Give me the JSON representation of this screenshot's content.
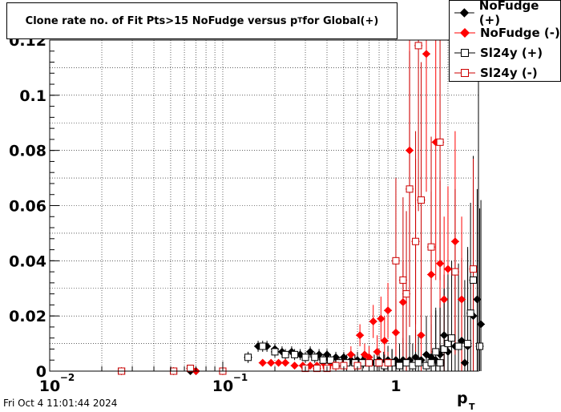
{
  "title": {
    "text": "Clone rate no. of Fit Pts>15 NoFudge versus p",
    "sub": "T",
    "suffix": " for Global(+)"
  },
  "timestamp": "Fri Oct  4 11:01:44 2024",
  "legend": [
    {
      "label": "NoFudge (+)",
      "color": "#000000",
      "marker": "filled-diamond"
    },
    {
      "label": "NoFudge (-)",
      "color": "#ff0000",
      "marker": "filled-diamond"
    },
    {
      "label": "Sl24y (+)",
      "color": "#000000",
      "marker": "open-square"
    },
    {
      "label": "Sl24y (-)",
      "color": "#cc0000",
      "marker": "open-square"
    }
  ],
  "chart_data": {
    "type": "scatter",
    "title": "Clone rate no. of Fit Pts>15 NoFudge versus pT for Global(+)",
    "xlabel": "p",
    "xlabel_sub": "T",
    "ylabel": "",
    "xscale": "log",
    "xlim": [
      0.01,
      3
    ],
    "ylim": [
      0,
      0.12
    ],
    "x_ticks": [
      {
        "value": 0.01,
        "base": "10",
        "exp": "−2"
      },
      {
        "value": 0.1,
        "base": "10",
        "exp": "−1"
      },
      {
        "value": 1,
        "base": "1",
        "exp": ""
      }
    ],
    "y_ticks": [
      0,
      0.02,
      0.04,
      0.06,
      0.08,
      0.1,
      0.12
    ],
    "y_tick_labels": [
      "0",
      "0.02",
      "0.04",
      "0.06",
      "0.08",
      "0.1",
      "0.12"
    ],
    "grid": true,
    "series": [
      {
        "name": "NoFudge (+)",
        "color": "#000000",
        "marker": "filled-diamond",
        "points": [
          [
            0.026,
            0,
            0.001
          ],
          [
            0.052,
            0,
            0.001
          ],
          [
            0.065,
            0,
            0.001
          ],
          [
            0.07,
            0,
            0.001
          ],
          [
            0.1,
            0,
            0.001
          ],
          [
            0.14,
            0.005,
            0.002
          ],
          [
            0.16,
            0.009,
            0.002
          ],
          [
            0.18,
            0.009,
            0.002
          ],
          [
            0.2,
            0.008,
            0.002
          ],
          [
            0.22,
            0.007,
            0.002
          ],
          [
            0.25,
            0.007,
            0.002
          ],
          [
            0.28,
            0.006,
            0.002
          ],
          [
            0.32,
            0.007,
            0.002
          ],
          [
            0.36,
            0.006,
            0.002
          ],
          [
            0.4,
            0.006,
            0.002
          ],
          [
            0.45,
            0.005,
            0.002
          ],
          [
            0.5,
            0.005,
            0.002
          ],
          [
            0.55,
            0.004,
            0.002
          ],
          [
            0.6,
            0.004,
            0.003
          ],
          [
            0.65,
            0.004,
            0.003
          ],
          [
            0.7,
            0.003,
            0.003
          ],
          [
            0.75,
            0.003,
            0.003
          ],
          [
            0.8,
            0.004,
            0.004
          ],
          [
            0.85,
            0.003,
            0.004
          ],
          [
            0.9,
            0.004,
            0.005
          ],
          [
            0.95,
            0.003,
            0.005
          ],
          [
            1.0,
            0.004,
            0.006
          ],
          [
            1.05,
            0.003,
            0.007
          ],
          [
            1.1,
            0.004,
            0.008
          ],
          [
            1.2,
            0.004,
            0.009
          ],
          [
            1.3,
            0.005,
            0.01
          ],
          [
            1.4,
            0.004,
            0.012
          ],
          [
            1.5,
            0.006,
            0.014
          ],
          [
            1.6,
            0.005,
            0.016
          ],
          [
            1.7,
            0.004,
            0.018
          ],
          [
            1.8,
            0.006,
            0.02
          ],
          [
            1.9,
            0.013,
            0.022
          ],
          [
            2.0,
            0.007,
            0.025
          ],
          [
            2.2,
            0.009,
            0.028
          ],
          [
            2.4,
            0.011,
            0.03
          ],
          [
            2.5,
            0.003,
            0.03
          ],
          [
            2.6,
            0.009,
            0.035
          ],
          [
            2.8,
            0.02,
            0.035
          ],
          [
            2.95,
            0.026,
            0.04
          ],
          [
            3.1,
            0.017,
            0.045
          ]
        ]
      },
      {
        "name": "NoFudge (-)",
        "color": "#ff0000",
        "marker": "filled-diamond",
        "points": [
          [
            0.026,
            0,
            0.001
          ],
          [
            0.052,
            0,
            0.001
          ],
          [
            0.07,
            0,
            0.001
          ],
          [
            0.1,
            0,
            0.001
          ],
          [
            0.17,
            0.003,
            0.001
          ],
          [
            0.19,
            0.003,
            0.001
          ],
          [
            0.21,
            0.003,
            0.001
          ],
          [
            0.23,
            0.003,
            0.001
          ],
          [
            0.26,
            0.002,
            0.001
          ],
          [
            0.29,
            0.002,
            0.001
          ],
          [
            0.32,
            0.002,
            0.001
          ],
          [
            0.35,
            0.002,
            0.001
          ],
          [
            0.38,
            0.003,
            0.002
          ],
          [
            0.42,
            0.003,
            0.002
          ],
          [
            0.46,
            0.003,
            0.002
          ],
          [
            0.5,
            0.003,
            0.002
          ],
          [
            0.55,
            0.006,
            0.003
          ],
          [
            0.58,
            0.003,
            0.003
          ],
          [
            0.62,
            0.013,
            0.004
          ],
          [
            0.66,
            0.006,
            0.004
          ],
          [
            0.7,
            0.005,
            0.004
          ],
          [
            0.74,
            0.018,
            0.006
          ],
          [
            0.78,
            0.007,
            0.006
          ],
          [
            0.82,
            0.019,
            0.008
          ],
          [
            0.86,
            0.011,
            0.009
          ],
          [
            0.9,
            0.022,
            0.01
          ],
          [
            1.0,
            0.014,
            0.012
          ],
          [
            1.1,
            0.025,
            0.015
          ],
          [
            1.2,
            0.08,
            0.04
          ],
          [
            1.3,
            0.047,
            0.03
          ],
          [
            1.4,
            0.013,
            0.02
          ],
          [
            1.5,
            0.115,
            0.05
          ],
          [
            1.6,
            0.035,
            0.03
          ],
          [
            1.7,
            0.083,
            0.05
          ],
          [
            1.8,
            0.039,
            0.03
          ],
          [
            1.9,
            0.026,
            0.03
          ],
          [
            2.0,
            0.037,
            0.03
          ],
          [
            2.2,
            0.047,
            0.04
          ],
          [
            2.4,
            0.026,
            0.03
          ]
        ]
      },
      {
        "name": "Sl24y (+)",
        "color": "#000000",
        "marker": "open-square",
        "points": [
          [
            0.026,
            0,
            0.001
          ],
          [
            0.052,
            0,
            0.001
          ],
          [
            0.065,
            0.001,
            0.001
          ],
          [
            0.1,
            0,
            0.001
          ],
          [
            0.14,
            0.005,
            0.002
          ],
          [
            0.17,
            0.009,
            0.002
          ],
          [
            0.2,
            0.007,
            0.002
          ],
          [
            0.23,
            0.006,
            0.002
          ],
          [
            0.26,
            0.006,
            0.002
          ],
          [
            0.3,
            0.005,
            0.002
          ],
          [
            0.34,
            0.005,
            0.002
          ],
          [
            0.38,
            0.004,
            0.002
          ],
          [
            0.42,
            0.004,
            0.002
          ],
          [
            0.47,
            0.003,
            0.002
          ],
          [
            0.52,
            0.003,
            0.003
          ],
          [
            0.58,
            0.003,
            0.003
          ],
          [
            0.64,
            0.003,
            0.003
          ],
          [
            0.7,
            0.003,
            0.003
          ],
          [
            0.78,
            0.003,
            0.004
          ],
          [
            0.86,
            0.002,
            0.004
          ],
          [
            0.95,
            0.003,
            0.005
          ],
          [
            1.05,
            0.002,
            0.006
          ],
          [
            1.15,
            0.003,
            0.007
          ],
          [
            1.25,
            0.002,
            0.008
          ],
          [
            1.35,
            0.003,
            0.01
          ],
          [
            1.5,
            0.002,
            0.012
          ],
          [
            1.6,
            0.003,
            0.014
          ],
          [
            1.7,
            0.007,
            0.016
          ],
          [
            1.8,
            0.003,
            0.02
          ],
          [
            1.9,
            0.008,
            0.022
          ],
          [
            2.0,
            0.01,
            0.025
          ],
          [
            2.1,
            0.012,
            0.028
          ],
          [
            2.3,
            0.009,
            0.03
          ],
          [
            2.6,
            0.01,
            0.035
          ],
          [
            2.7,
            0.021,
            0.04
          ],
          [
            2.8,
            0.033,
            0.045
          ],
          [
            3.05,
            0.009,
            0.05
          ]
        ]
      },
      {
        "name": "Sl24y (-)",
        "color": "#cc0000",
        "marker": "open-square",
        "points": [
          [
            0.026,
            0,
            0.001
          ],
          [
            0.052,
            0,
            0.001
          ],
          [
            0.065,
            0.001,
            0.001
          ],
          [
            0.1,
            0,
            0.001
          ],
          [
            0.3,
            0.001,
            0.001
          ],
          [
            0.35,
            0.001,
            0.001
          ],
          [
            0.4,
            0.001,
            0.001
          ],
          [
            0.45,
            0.002,
            0.002
          ],
          [
            0.5,
            0.002,
            0.002
          ],
          [
            0.6,
            0.002,
            0.002
          ],
          [
            0.7,
            0.003,
            0.003
          ],
          [
            0.8,
            0.003,
            0.003
          ],
          [
            0.9,
            0.003,
            0.004
          ],
          [
            1.0,
            0.04,
            0.03
          ],
          [
            1.1,
            0.033,
            0.03
          ],
          [
            1.15,
            0.028,
            0.03
          ],
          [
            1.2,
            0.066,
            0.05
          ],
          [
            1.3,
            0.047,
            0.04
          ],
          [
            1.35,
            0.118,
            0.06
          ],
          [
            1.4,
            0.062,
            0.05
          ],
          [
            1.6,
            0.045,
            0.04
          ],
          [
            1.8,
            0.083,
            0.05
          ],
          [
            2.2,
            0.036,
            0.03
          ],
          [
            2.8,
            0.037,
            0.04
          ]
        ]
      }
    ]
  }
}
